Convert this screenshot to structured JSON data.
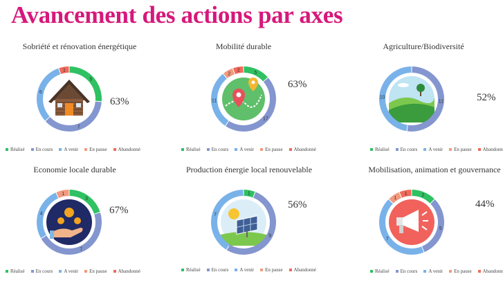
{
  "title": "Avancement des actions par axes",
  "legend": [
    {
      "label": "Réalisé",
      "color": "#2fc162"
    },
    {
      "label": "En cours",
      "color": "#8496cf"
    },
    {
      "label": "A venir",
      "color": "#79b2e9"
    },
    {
      "label": "En pause",
      "color": "#f29a7e"
    },
    {
      "label": "Abandonné",
      "color": "#ef6a5a"
    }
  ],
  "chart_data": [
    {
      "type": "pie",
      "title": "Sobriété et rénovation énergétique",
      "percent_label": "63%",
      "icon": "house-icon",
      "categories": [
        "Réalisé",
        "En cours",
        "A venir",
        "En pause",
        "Abandonné"
      ],
      "values": [
        5,
        7,
        6,
        0,
        1
      ]
    },
    {
      "type": "pie",
      "title": "Mobilité durable",
      "percent_label": "63%",
      "icon": "map-route-icon",
      "categories": [
        "Réalisé",
        "En cours",
        "A venir",
        "En pause",
        "Abandonné"
      ],
      "values": [
        5,
        17,
        11,
        2,
        2
      ]
    },
    {
      "type": "pie",
      "title": "Agriculture/Biodiversité",
      "percent_label": "52%",
      "icon": "landscape-icon",
      "categories": [
        "Réalisé",
        "En cours",
        "A venir",
        "En pause",
        "Abandonné"
      ],
      "values": [
        0,
        11,
        10,
        0,
        0
      ]
    },
    {
      "type": "pie",
      "title": "Economie locale durable",
      "percent_label": "67%",
      "icon": "hand-coins-icon",
      "categories": [
        "Réalisé",
        "En cours",
        "A venir",
        "En pause",
        "Abandonné"
      ],
      "values": [
        3,
        7,
        4,
        1,
        0
      ]
    },
    {
      "type": "pie",
      "title": "Production énergie local renouvelable",
      "percent_label": "56%",
      "icon": "solar-panel-icon",
      "categories": [
        "Réalisé",
        "En cours",
        "A venir",
        "En pause",
        "Abandonné"
      ],
      "values": [
        1,
        9,
        7,
        0,
        0
      ]
    },
    {
      "type": "pie",
      "title": "Mobilisation, animation et gouvernance",
      "percent_label": "44%",
      "icon": "megaphone-icon",
      "categories": [
        "Réalisé",
        "En cours",
        "A venir",
        "En pause",
        "Abandonné"
      ],
      "values": [
        2,
        5,
        7,
        1,
        1
      ]
    }
  ]
}
